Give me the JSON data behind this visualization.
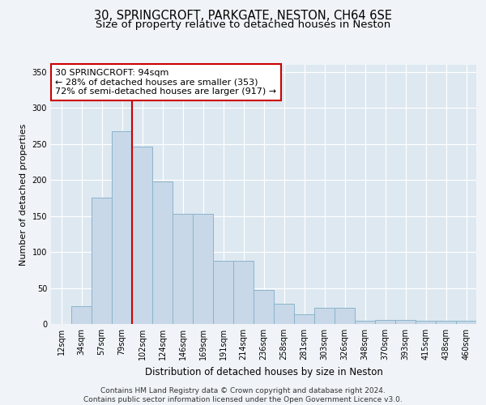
{
  "title1": "30, SPRINGCROFT, PARKGATE, NESTON, CH64 6SE",
  "title2": "Size of property relative to detached houses in Neston",
  "xlabel": "Distribution of detached houses by size in Neston",
  "ylabel": "Number of detached properties",
  "categories": [
    "12sqm",
    "34sqm",
    "57sqm",
    "79sqm",
    "102sqm",
    "124sqm",
    "146sqm",
    "169sqm",
    "191sqm",
    "214sqm",
    "236sqm",
    "258sqm",
    "281sqm",
    "303sqm",
    "326sqm",
    "348sqm",
    "370sqm",
    "393sqm",
    "415sqm",
    "438sqm",
    "460sqm"
  ],
  "values": [
    0,
    25,
    175,
    268,
    246,
    198,
    153,
    153,
    88,
    88,
    47,
    28,
    13,
    22,
    22,
    5,
    6,
    6,
    4,
    5,
    4
  ],
  "bar_color": "#c8d8e8",
  "bar_edge_color": "#8ab4cc",
  "background_color": "#dde8f0",
  "grid_color": "#ffffff",
  "vline_color": "#cc0000",
  "annotation_text": "30 SPRINGCROFT: 94sqm\n← 28% of detached houses are smaller (353)\n72% of semi-detached houses are larger (917) →",
  "annotation_box_color": "#ffffff",
  "annotation_box_edge": "#cc0000",
  "ylim": [
    0,
    360
  ],
  "yticks": [
    0,
    50,
    100,
    150,
    200,
    250,
    300,
    350
  ],
  "footer_text": "Contains HM Land Registry data © Crown copyright and database right 2024.\nContains public sector information licensed under the Open Government Licence v3.0.",
  "title1_fontsize": 10.5,
  "title2_fontsize": 9.5,
  "xlabel_fontsize": 8.5,
  "ylabel_fontsize": 8,
  "tick_fontsize": 7,
  "annotation_fontsize": 8,
  "footer_fontsize": 6.5,
  "fig_facecolor": "#f0f4f8"
}
